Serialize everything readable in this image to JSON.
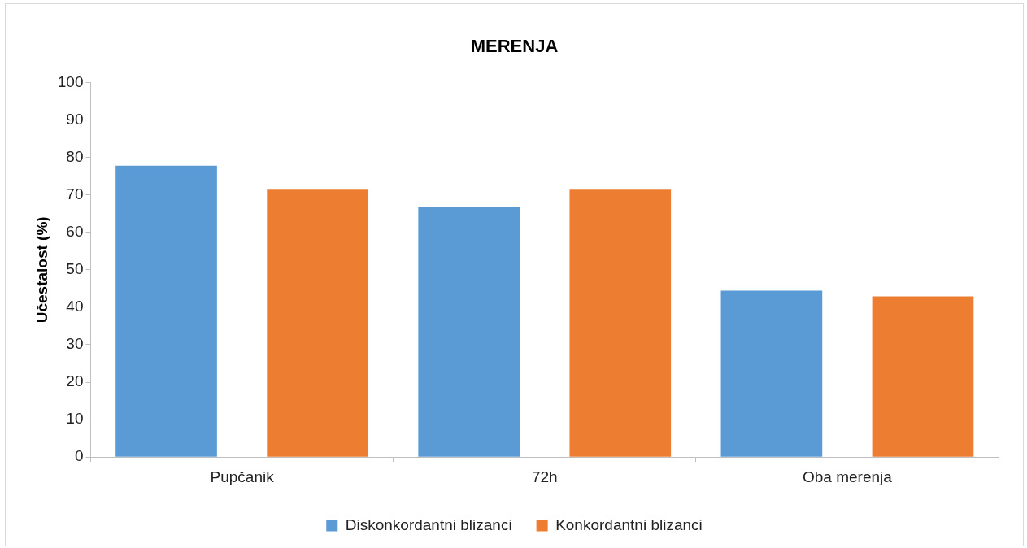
{
  "chart_data": {
    "type": "bar",
    "title": "MERENJA",
    "ylabel": "Učestalost (%)",
    "categories": [
      "Pupčanik",
      "72h",
      "Oba merenja"
    ],
    "series": [
      {
        "name": "Diskonkordantni blizanci",
        "color": "#5b9bd5",
        "values": [
          77.8,
          66.7,
          44.4
        ]
      },
      {
        "name": "Konkordantni blizanci",
        "color": "#ed7d31",
        "values": [
          71.4,
          71.4,
          42.9
        ]
      }
    ],
    "ylim": [
      0,
      100
    ],
    "yticks": [
      0,
      10,
      20,
      30,
      40,
      50,
      60,
      70,
      80,
      90,
      100
    ],
    "grid": false,
    "legend": "bottom"
  }
}
